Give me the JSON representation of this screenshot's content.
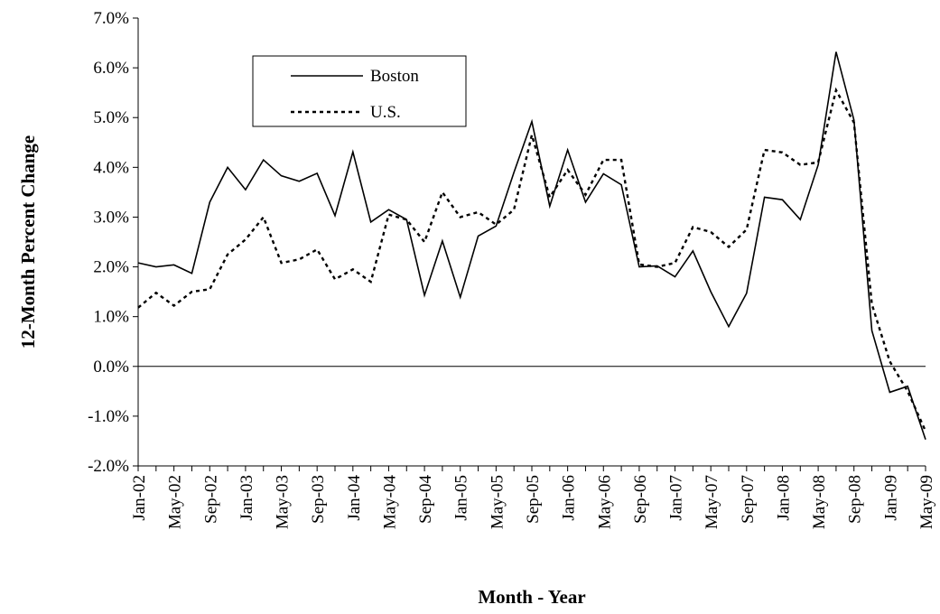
{
  "chart_data": {
    "type": "line",
    "y_label": "12-Month Percent Change",
    "x_label": "Month - Year",
    "categories": [
      "Jan-02",
      null,
      "May-02",
      null,
      "Sep-02",
      null,
      "Jan-03",
      null,
      "May-03",
      null,
      "Sep-03",
      null,
      "Jan-04",
      null,
      "May-04",
      null,
      "Sep-04",
      null,
      "Jan-05",
      null,
      "May-05",
      null,
      "Sep-05",
      null,
      "Jan-06",
      null,
      "May-06",
      null,
      "Sep-06",
      null,
      "Jan-07",
      null,
      "May-07",
      null,
      "Sep-07",
      null,
      "Jan-08",
      null,
      "May-08",
      null,
      "Sep-08",
      null,
      "Jan-09",
      null,
      "May-09"
    ],
    "series": [
      {
        "name": "Boston",
        "color": "#000000",
        "dash": "solid",
        "values": [
          2.08,
          2.0,
          2.04,
          1.87,
          3.3,
          4.0,
          3.55,
          4.15,
          3.83,
          3.72,
          3.88,
          3.03,
          4.31,
          2.9,
          3.15,
          2.95,
          1.43,
          2.52,
          1.39,
          2.62,
          2.82,
          3.9,
          4.92,
          3.22,
          4.35,
          3.3,
          3.87,
          3.65,
          2.0,
          2.02,
          1.8,
          2.32,
          1.5,
          0.8,
          1.47,
          3.4,
          3.35,
          2.95,
          4.05,
          6.32,
          4.95,
          0.72,
          -0.52,
          -0.4,
          -1.47
        ]
      },
      {
        "name": "U.S.",
        "color": "#000000",
        "dash": "dotted",
        "values": [
          1.18,
          1.48,
          1.22,
          1.5,
          1.55,
          2.25,
          2.55,
          3.0,
          2.08,
          2.15,
          2.35,
          1.75,
          1.95,
          1.7,
          3.05,
          2.95,
          2.5,
          3.5,
          3.0,
          3.1,
          2.85,
          3.15,
          4.65,
          3.4,
          3.95,
          3.45,
          4.15,
          4.15,
          2.05,
          2.0,
          2.08,
          2.8,
          2.7,
          2.4,
          2.75,
          4.35,
          4.3,
          4.05,
          4.1,
          5.55,
          4.9,
          1.25,
          0.1,
          -0.5,
          -1.3
        ]
      }
    ],
    "ylim": [
      -2,
      7
    ],
    "yticks": [
      {
        "value": -2,
        "label": "-2.0%"
      },
      {
        "value": -1,
        "label": "-1.0%"
      },
      {
        "value": 0,
        "label": "0.0%"
      },
      {
        "value": 1,
        "label": "1.0%"
      },
      {
        "value": 2,
        "label": "2.0%"
      },
      {
        "value": 3,
        "label": "3.0%"
      },
      {
        "value": 4,
        "label": "4.0%"
      },
      {
        "value": 5,
        "label": "5.0%"
      },
      {
        "value": 6,
        "label": "6.0%"
      },
      {
        "value": 7,
        "label": "7.0%"
      }
    ],
    "legend": "top-left"
  }
}
